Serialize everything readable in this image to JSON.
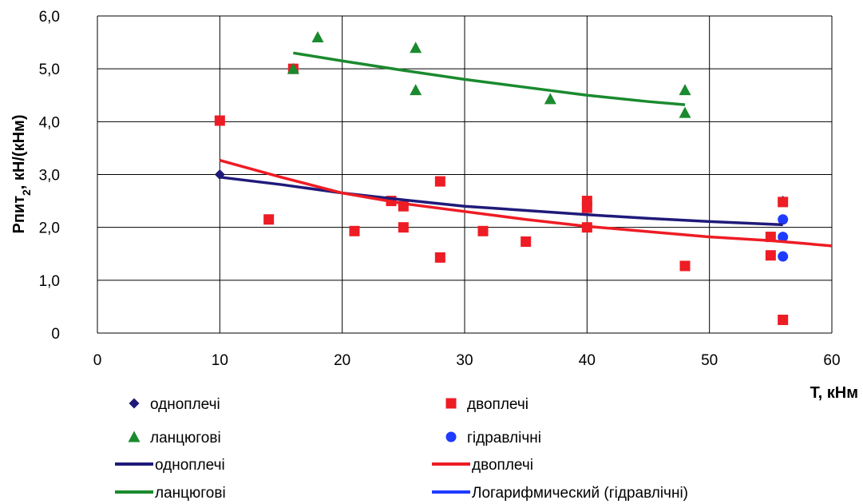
{
  "chart_data": {
    "type": "scatter",
    "xlabel": "T, кНм",
    "ylabel_main": "Рпит",
    "ylabel_sub": "2",
    "ylabel_tail": ", кН/(кНм)",
    "xlim": [
      0,
      60
    ],
    "ylim": [
      0,
      6
    ],
    "x_ticks": [
      "0",
      "10",
      "20",
      "30",
      "40",
      "50",
      "60"
    ],
    "y_ticks": [
      "0",
      "1,0",
      "2,0",
      "3,0",
      "4,0",
      "5,0",
      "6,0"
    ],
    "grid": true,
    "legend_position": "bottom",
    "series": [
      {
        "name": "одноплечі",
        "kind": "points",
        "marker": "diamond",
        "color": "#1f1a7a",
        "points": [
          [
            10,
            3.0
          ],
          [
            56,
            2.5
          ]
        ]
      },
      {
        "name": "двоплечі",
        "kind": "points",
        "marker": "square",
        "color": "#ee1c24",
        "points": [
          [
            10,
            4.02
          ],
          [
            14,
            2.15
          ],
          [
            16,
            5.0
          ],
          [
            21,
            1.93
          ],
          [
            24,
            2.5
          ],
          [
            25,
            2.4
          ],
          [
            25,
            2.0
          ],
          [
            28,
            2.87
          ],
          [
            28,
            1.43
          ],
          [
            31.5,
            1.93
          ],
          [
            35,
            1.73
          ],
          [
            40,
            2.5
          ],
          [
            40,
            2.37
          ],
          [
            40,
            2.0
          ],
          [
            48,
            1.27
          ],
          [
            55,
            1.47
          ],
          [
            55,
            1.82
          ],
          [
            56,
            2.48
          ],
          [
            56,
            0.25
          ]
        ]
      },
      {
        "name": "ланцюгові",
        "kind": "points",
        "marker": "triangle",
        "color": "#1a8a2e",
        "points": [
          [
            16,
            5.0
          ],
          [
            18,
            5.6
          ],
          [
            26,
            5.4
          ],
          [
            26,
            4.6
          ],
          [
            37,
            4.43
          ],
          [
            48,
            4.6
          ],
          [
            48,
            4.17
          ]
        ]
      },
      {
        "name": "гідравлічні",
        "kind": "points",
        "marker": "circle",
        "color": "#1f3bff",
        "points": [
          [
            56,
            2.15
          ],
          [
            56,
            1.82
          ],
          [
            56,
            1.45
          ]
        ]
      },
      {
        "name": "одноплечі",
        "kind": "line",
        "color": "#1f1a7a",
        "points": [
          [
            10,
            2.95
          ],
          [
            15,
            2.81
          ],
          [
            20,
            2.65
          ],
          [
            25,
            2.52
          ],
          [
            30,
            2.4
          ],
          [
            35,
            2.32
          ],
          [
            40,
            2.24
          ],
          [
            45,
            2.17
          ],
          [
            50,
            2.11
          ],
          [
            56,
            2.05
          ]
        ]
      },
      {
        "name": "двоплечі",
        "kind": "line",
        "color": "#ee1c24",
        "points": [
          [
            10,
            3.27
          ],
          [
            15,
            2.95
          ],
          [
            20,
            2.65
          ],
          [
            25,
            2.45
          ],
          [
            30,
            2.3
          ],
          [
            35,
            2.15
          ],
          [
            40,
            2.02
          ],
          [
            45,
            1.92
          ],
          [
            50,
            1.82
          ],
          [
            55,
            1.75
          ],
          [
            60,
            1.65
          ]
        ]
      },
      {
        "name": "ланцюгові",
        "kind": "line",
        "color": "#1a8a2e",
        "points": [
          [
            16,
            5.3
          ],
          [
            20,
            5.15
          ],
          [
            25,
            4.97
          ],
          [
            30,
            4.8
          ],
          [
            35,
            4.65
          ],
          [
            40,
            4.5
          ],
          [
            45,
            4.38
          ],
          [
            48,
            4.32
          ]
        ]
      },
      {
        "name": "Логарифмический (гідравлічні)",
        "kind": "line",
        "color": "#1f3bff",
        "points": []
      }
    ]
  }
}
